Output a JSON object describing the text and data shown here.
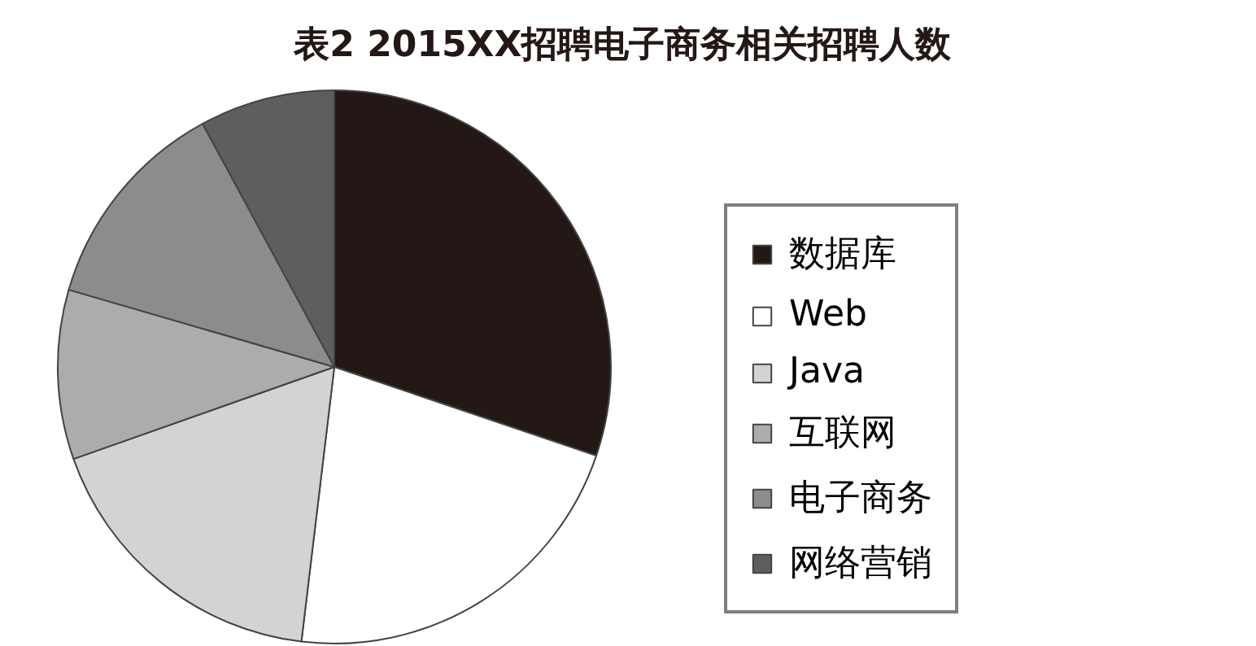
{
  "chart_data": {
    "type": "pie",
    "title": "表2  2015XX招聘电子商务相关招聘人数",
    "categories": [
      "数据库",
      "Web",
      "Java",
      "互联网",
      "电子商务",
      "网络营销"
    ],
    "values": [
      30.2,
      21.7,
      17.7,
      9.9,
      12.6,
      7.9
    ],
    "colors": [
      "#231815",
      "#ffffff",
      "#d3d3d3",
      "#acacac",
      "#8c8c8c",
      "#5e5e5e"
    ],
    "legend": "right"
  }
}
